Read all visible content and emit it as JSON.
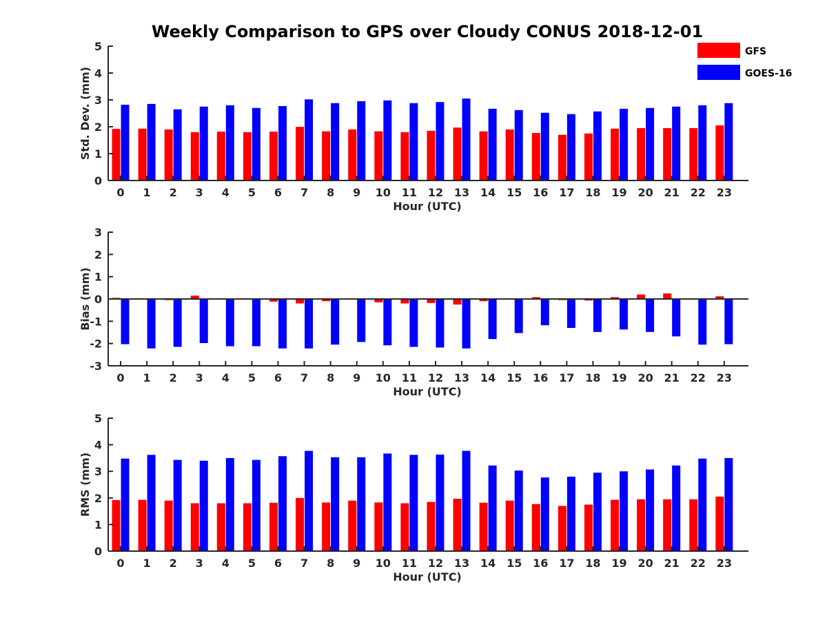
{
  "title": "Weekly Comparison to GPS over Cloudy CONUS 2018-12-01",
  "legend": [
    {
      "name": "GFS",
      "color": "#ff0000"
    },
    {
      "name": "GOES-16",
      "color": "#0000ff"
    }
  ],
  "chart_data": [
    {
      "type": "bar",
      "ylabel": "Std. Dev. (mm)",
      "xlabel": "Hour (UTC)",
      "ylim": [
        0,
        5
      ],
      "yticks": [
        0,
        1,
        2,
        3,
        4,
        5
      ],
      "categories": [
        "0",
        "1",
        "2",
        "3",
        "4",
        "5",
        "6",
        "7",
        "8",
        "9",
        "10",
        "11",
        "12",
        "13",
        "14",
        "15",
        "16",
        "17",
        "18",
        "19",
        "20",
        "21",
        "22",
        "23"
      ],
      "series": [
        {
          "name": "GFS",
          "color": "#ff0000",
          "values": [
            1.92,
            1.93,
            1.9,
            1.8,
            1.82,
            1.8,
            1.82,
            2.0,
            1.83,
            1.9,
            1.83,
            1.8,
            1.85,
            1.97,
            1.83,
            1.9,
            1.77,
            1.7,
            1.75,
            1.93,
            1.95,
            1.95,
            1.95,
            2.05
          ]
        },
        {
          "name": "GOES-16",
          "color": "#0000ff",
          "values": [
            2.82,
            2.85,
            2.65,
            2.75,
            2.8,
            2.7,
            2.77,
            3.02,
            2.88,
            2.95,
            2.98,
            2.88,
            2.92,
            3.05,
            2.67,
            2.62,
            2.52,
            2.47,
            2.57,
            2.67,
            2.7,
            2.75,
            2.8,
            2.88
          ]
        }
      ]
    },
    {
      "type": "bar",
      "ylabel": "Bias (mm)",
      "xlabel": "Hour (UTC)",
      "ylim": [
        -3,
        3
      ],
      "yticks": [
        -3,
        -2,
        -1,
        0,
        1,
        2,
        3
      ],
      "zero_line": true,
      "categories": [
        "0",
        "1",
        "2",
        "3",
        "4",
        "5",
        "6",
        "7",
        "8",
        "9",
        "10",
        "11",
        "12",
        "13",
        "14",
        "15",
        "16",
        "17",
        "18",
        "19",
        "20",
        "21",
        "22",
        "23"
      ],
      "series": [
        {
          "name": "GFS",
          "color": "#ff0000",
          "values": [
            0.05,
            -0.02,
            -0.05,
            0.15,
            0.02,
            -0.02,
            -0.12,
            -0.2,
            -0.1,
            -0.02,
            -0.15,
            -0.2,
            -0.18,
            -0.25,
            -0.1,
            -0.02,
            0.08,
            -0.05,
            -0.07,
            0.08,
            0.2,
            0.25,
            -0.02,
            0.12
          ]
        },
        {
          "name": "GOES-16",
          "color": "#0000ff",
          "values": [
            -2.03,
            -2.22,
            -2.15,
            -1.98,
            -2.12,
            -2.12,
            -2.22,
            -2.22,
            -2.05,
            -1.93,
            -2.08,
            -2.15,
            -2.18,
            -2.22,
            -1.8,
            -1.53,
            -1.18,
            -1.3,
            -1.48,
            -1.37,
            -1.48,
            -1.68,
            -2.05,
            -2.03
          ]
        }
      ]
    },
    {
      "type": "bar",
      "ylabel": "RMS (mm)",
      "xlabel": "Hour (UTC)",
      "ylim": [
        0,
        5
      ],
      "yticks": [
        0,
        1,
        2,
        3,
        4,
        5
      ],
      "categories": [
        "0",
        "1",
        "2",
        "3",
        "4",
        "5",
        "6",
        "7",
        "8",
        "9",
        "10",
        "11",
        "12",
        "13",
        "14",
        "15",
        "16",
        "17",
        "18",
        "19",
        "20",
        "21",
        "22",
        "23"
      ],
      "series": [
        {
          "name": "GFS",
          "color": "#ff0000",
          "values": [
            1.92,
            1.93,
            1.9,
            1.8,
            1.8,
            1.8,
            1.82,
            2.0,
            1.83,
            1.9,
            1.83,
            1.8,
            1.85,
            1.97,
            1.82,
            1.9,
            1.77,
            1.7,
            1.75,
            1.93,
            1.95,
            1.95,
            1.95,
            2.05
          ]
        },
        {
          "name": "GOES-16",
          "color": "#0000ff",
          "values": [
            3.48,
            3.62,
            3.43,
            3.4,
            3.5,
            3.43,
            3.57,
            3.77,
            3.53,
            3.53,
            3.67,
            3.62,
            3.63,
            3.77,
            3.22,
            3.03,
            2.77,
            2.8,
            2.95,
            3.0,
            3.07,
            3.22,
            3.48,
            3.5
          ]
        }
      ]
    }
  ]
}
